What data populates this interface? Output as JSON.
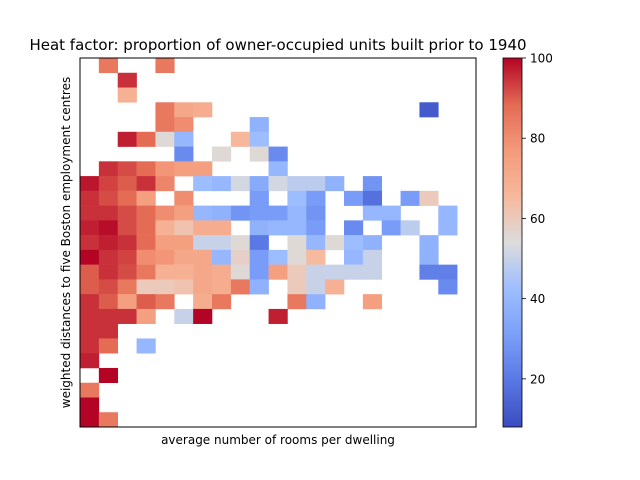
{
  "chart_data": {
    "type": "heatmap",
    "title": "Heat factor: proportion of owner-occupied units built prior to 1940",
    "xlabel": "average number of rooms per dwelling",
    "ylabel": "weighted distances to five Boston employment centres",
    "x_ticks_shown": false,
    "y_ticks_shown": false,
    "grid": false,
    "colormap": "coolwarm",
    "colorbar": {
      "range": [
        8,
        100
      ],
      "ticks": [
        20,
        40,
        60,
        80,
        100
      ],
      "tick_labels": [
        "20",
        "40",
        "60",
        "80",
        "100"
      ]
    },
    "n_cols": 21,
    "n_rows": 25,
    "cells": [
      [
        0,
        1,
        85
      ],
      [
        0,
        4,
        85
      ],
      [
        1,
        2,
        95
      ],
      [
        2,
        2,
        68
      ],
      [
        3,
        4,
        85
      ],
      [
        3,
        5,
        72
      ],
      [
        3,
        6,
        70
      ],
      [
        3,
        18,
        12
      ],
      [
        4,
        4,
        85
      ],
      [
        4,
        5,
        80
      ],
      [
        4,
        9,
        38
      ],
      [
        5,
        2,
        97
      ],
      [
        5,
        3,
        88
      ],
      [
        5,
        4,
        55
      ],
      [
        5,
        5,
        40
      ],
      [
        5,
        8,
        66
      ],
      [
        5,
        9,
        42
      ],
      [
        6,
        5,
        25
      ],
      [
        6,
        7,
        55
      ],
      [
        6,
        9,
        55
      ],
      [
        6,
        10,
        25
      ],
      [
        7,
        1,
        95
      ],
      [
        7,
        2,
        92
      ],
      [
        7,
        3,
        88
      ],
      [
        7,
        4,
        78
      ],
      [
        7,
        5,
        75
      ],
      [
        7,
        6,
        75
      ],
      [
        7,
        10,
        40
      ],
      [
        8,
        0,
        98
      ],
      [
        8,
        1,
        93
      ],
      [
        8,
        2,
        90
      ],
      [
        8,
        3,
        95
      ],
      [
        8,
        4,
        82
      ],
      [
        8,
        6,
        42
      ],
      [
        8,
        7,
        40
      ],
      [
        8,
        8,
        52
      ],
      [
        8,
        9,
        35
      ],
      [
        8,
        10,
        52
      ],
      [
        8,
        11,
        48
      ],
      [
        8,
        12,
        48
      ],
      [
        8,
        13,
        38
      ],
      [
        8,
        15,
        28
      ],
      [
        9,
        0,
        95
      ],
      [
        9,
        1,
        92
      ],
      [
        9,
        2,
        88
      ],
      [
        9,
        3,
        75
      ],
      [
        9,
        5,
        80
      ],
      [
        9,
        9,
        30
      ],
      [
        9,
        11,
        42
      ],
      [
        9,
        12,
        30
      ],
      [
        9,
        14,
        30
      ],
      [
        9,
        15,
        18
      ],
      [
        9,
        17,
        30
      ],
      [
        9,
        18,
        60
      ],
      [
        10,
        0,
        95
      ],
      [
        10,
        1,
        95
      ],
      [
        10,
        2,
        92
      ],
      [
        10,
        3,
        88
      ],
      [
        10,
        4,
        80
      ],
      [
        10,
        5,
        75
      ],
      [
        10,
        6,
        40
      ],
      [
        10,
        7,
        38
      ],
      [
        10,
        8,
        28
      ],
      [
        10,
        9,
        30
      ],
      [
        10,
        10,
        30
      ],
      [
        10,
        11,
        40
      ],
      [
        10,
        12,
        28
      ],
      [
        10,
        15,
        40
      ],
      [
        10,
        16,
        40
      ],
      [
        10,
        19,
        40
      ],
      [
        11,
        0,
        97
      ],
      [
        11,
        1,
        99
      ],
      [
        11,
        2,
        92
      ],
      [
        11,
        3,
        88
      ],
      [
        11,
        4,
        68
      ],
      [
        11,
        5,
        62
      ],
      [
        11,
        6,
        70
      ],
      [
        11,
        7,
        70
      ],
      [
        11,
        9,
        38
      ],
      [
        11,
        10,
        40
      ],
      [
        11,
        11,
        40
      ],
      [
        11,
        12,
        30
      ],
      [
        11,
        14,
        25
      ],
      [
        11,
        16,
        30
      ],
      [
        11,
        17,
        48
      ],
      [
        11,
        19,
        40
      ],
      [
        12,
        0,
        95
      ],
      [
        12,
        1,
        97
      ],
      [
        12,
        2,
        95
      ],
      [
        12,
        3,
        88
      ],
      [
        12,
        4,
        75
      ],
      [
        12,
        5,
        75
      ],
      [
        12,
        6,
        50
      ],
      [
        12,
        7,
        50
      ],
      [
        12,
        8,
        55
      ],
      [
        12,
        9,
        20
      ],
      [
        12,
        11,
        55
      ],
      [
        12,
        12,
        40
      ],
      [
        12,
        13,
        55
      ],
      [
        12,
        14,
        42
      ],
      [
        12,
        15,
        38
      ],
      [
        12,
        18,
        38
      ],
      [
        13,
        0,
        100
      ],
      [
        13,
        1,
        95
      ],
      [
        13,
        2,
        93
      ],
      [
        13,
        3,
        80
      ],
      [
        13,
        4,
        78
      ],
      [
        13,
        5,
        72
      ],
      [
        13,
        6,
        72
      ],
      [
        13,
        7,
        40
      ],
      [
        13,
        8,
        58
      ],
      [
        13,
        9,
        30
      ],
      [
        13,
        10,
        42
      ],
      [
        13,
        11,
        55
      ],
      [
        13,
        12,
        65
      ],
      [
        13,
        14,
        40
      ],
      [
        13,
        15,
        50
      ],
      [
        13,
        18,
        38
      ],
      [
        14,
        0,
        90
      ],
      [
        14,
        1,
        95
      ],
      [
        14,
        2,
        92
      ],
      [
        14,
        3,
        85
      ],
      [
        14,
        4,
        68
      ],
      [
        14,
        5,
        68
      ],
      [
        14,
        6,
        72
      ],
      [
        14,
        7,
        70
      ],
      [
        14,
        8,
        55
      ],
      [
        14,
        9,
        30
      ],
      [
        14,
        10,
        75
      ],
      [
        14,
        11,
        60
      ],
      [
        14,
        12,
        50
      ],
      [
        14,
        13,
        50
      ],
      [
        14,
        14,
        50
      ],
      [
        14,
        15,
        50
      ],
      [
        14,
        18,
        22
      ],
      [
        14,
        19,
        22
      ],
      [
        15,
        0,
        90
      ],
      [
        15,
        1,
        92
      ],
      [
        15,
        2,
        85
      ],
      [
        15,
        3,
        60
      ],
      [
        15,
        4,
        60
      ],
      [
        15,
        5,
        62
      ],
      [
        15,
        6,
        72
      ],
      [
        15,
        7,
        70
      ],
      [
        15,
        8,
        85
      ],
      [
        15,
        9,
        38
      ],
      [
        15,
        11,
        60
      ],
      [
        15,
        12,
        50
      ],
      [
        15,
        13,
        68
      ],
      [
        15,
        19,
        25
      ],
      [
        16,
        0,
        95
      ],
      [
        16,
        1,
        90
      ],
      [
        16,
        2,
        75
      ],
      [
        16,
        3,
        90
      ],
      [
        16,
        4,
        85
      ],
      [
        16,
        6,
        70
      ],
      [
        16,
        7,
        85
      ],
      [
        16,
        11,
        85
      ],
      [
        16,
        12,
        38
      ],
      [
        16,
        15,
        75
      ],
      [
        17,
        0,
        95
      ],
      [
        17,
        1,
        95
      ],
      [
        17,
        2,
        95
      ],
      [
        17,
        3,
        75
      ],
      [
        17,
        5,
        50
      ],
      [
        17,
        6,
        100
      ],
      [
        17,
        10,
        97
      ],
      [
        18,
        0,
        95
      ],
      [
        18,
        1,
        95
      ],
      [
        19,
        0,
        95
      ],
      [
        19,
        1,
        88
      ],
      [
        19,
        3,
        40
      ],
      [
        20,
        0,
        97
      ],
      [
        21,
        1,
        100
      ],
      [
        22,
        0,
        85
      ],
      [
        23,
        0,
        100
      ],
      [
        24,
        0,
        100
      ],
      [
        24,
        1,
        85
      ]
    ]
  }
}
